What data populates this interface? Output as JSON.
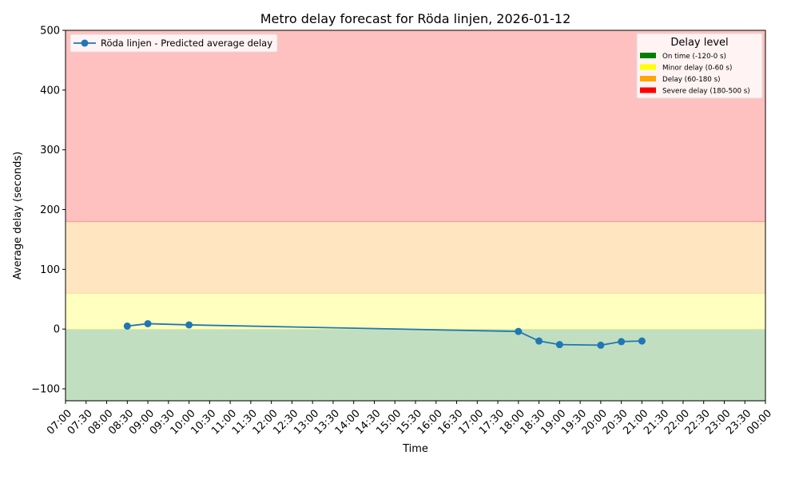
{
  "chart_data": {
    "type": "line",
    "title": "Metro delay forecast for Röda linjen, 2026-01-12",
    "xlabel": "Time",
    "ylabel": "Average delay (seconds)",
    "ylim": [
      -120,
      500
    ],
    "xlim": [
      "07:00",
      "00:00"
    ],
    "grid": false,
    "y_ticks": [
      -100,
      0,
      100,
      200,
      300,
      400,
      500
    ],
    "y_tick_labels": [
      "−100",
      "0",
      "100",
      "200",
      "300",
      "400",
      "500"
    ],
    "x_tick_labels": [
      "07:00",
      "07:30",
      "08:00",
      "08:30",
      "09:00",
      "09:30",
      "10:00",
      "10:30",
      "11:00",
      "11:30",
      "12:00",
      "12:30",
      "13:00",
      "13:30",
      "14:00",
      "14:30",
      "15:00",
      "15:30",
      "16:00",
      "16:30",
      "17:00",
      "17:30",
      "18:00",
      "18:30",
      "19:00",
      "19:30",
      "20:00",
      "20:30",
      "21:00",
      "21:30",
      "22:00",
      "22:30",
      "23:00",
      "23:30",
      "00:00"
    ],
    "series": [
      {
        "name": "Röda linjen - Predicted average delay",
        "color": "#1f77b4",
        "marker": "circle",
        "x": [
          "08:30",
          "09:00",
          "10:00",
          "18:00",
          "18:30",
          "19:00",
          "20:00",
          "20:30",
          "21:00"
        ],
        "values": [
          5,
          9,
          7,
          -4,
          -20,
          -26,
          -27,
          -21,
          -20
        ]
      }
    ],
    "bands": [
      {
        "label": "On time (-120-0 s)",
        "from": -120,
        "to": 0,
        "fill": "#c1dfc0",
        "legend_color": "#008000"
      },
      {
        "label": "Minor delay (0-60 s)",
        "from": 0,
        "to": 60,
        "fill": "#ffffc0",
        "legend_color": "#ffff00"
      },
      {
        "label": "Delay (60-180 s)",
        "from": 60,
        "to": 180,
        "fill": "#ffe6c0",
        "legend_color": "#ffa500"
      },
      {
        "label": "Severe delay (180-500 s)",
        "from": 180,
        "to": 500,
        "fill": "#ffc0c0",
        "legend_color": "#ff0000"
      }
    ],
    "legend_series": {
      "position": "upper left",
      "label": "Röda linjen - Predicted average delay"
    },
    "legend_bands": {
      "position": "upper right",
      "title": "Delay level"
    }
  }
}
